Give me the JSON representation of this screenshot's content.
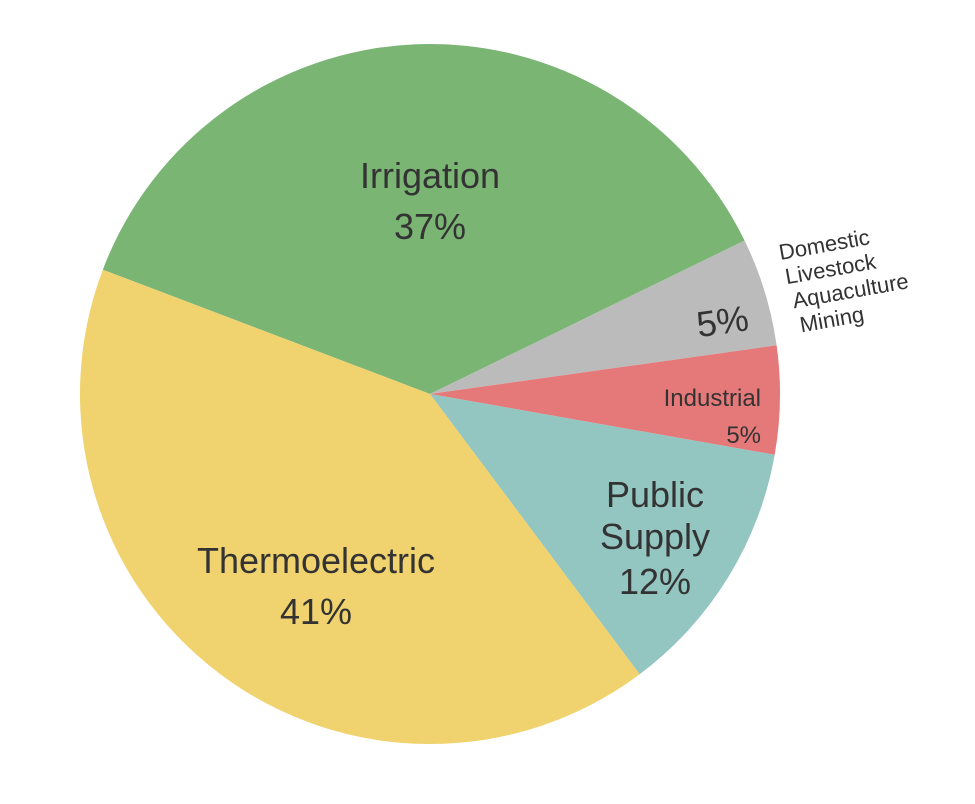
{
  "chart_data": {
    "type": "pie",
    "slices": [
      {
        "name": "Irrigation",
        "value": 37,
        "label": "37%",
        "color": "#7ab574"
      },
      {
        "name": "Domestic Livestock Aquaculture Mining",
        "value": 5,
        "label": "5%",
        "color": "#bbbbbb"
      },
      {
        "name": "Industrial",
        "value": 5,
        "label": "5%",
        "color": "#e57878"
      },
      {
        "name": "Public Supply",
        "value": 12,
        "label": "12%",
        "color": "#93c5c1"
      },
      {
        "name": "Thermoelectric",
        "value": 41,
        "label": "41%",
        "color": "#f0d36e"
      }
    ],
    "text_labels": {
      "irrigation": [
        "Irrigation",
        "37%"
      ],
      "other": [
        "Domestic",
        "Livestock",
        "Aquaculture",
        "Mining"
      ],
      "other_pct": "5%",
      "industrial": [
        "Industrial",
        "5%"
      ],
      "public_supply": [
        "Public",
        "Supply",
        "12%"
      ],
      "thermoelectric": [
        "Thermoelectric",
        "41%"
      ]
    },
    "text_color": "#333333"
  }
}
